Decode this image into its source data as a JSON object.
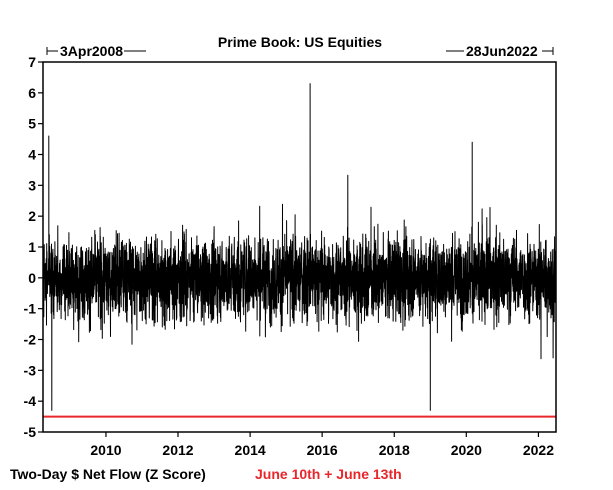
{
  "chart_data": {
    "type": "line",
    "title": "Prime Book: US Equities",
    "start_label": "3Apr2008",
    "end_label": "28Jun2022",
    "xlabel": "Two-Day $ Net Flow (Z Score)",
    "annotation": "June 10th + June 13th",
    "x_range": [
      "2008-04-03",
      "2022-06-28"
    ],
    "x_ticks": [
      "2010",
      "2012",
      "2014",
      "2016",
      "2018",
      "2020",
      "2022"
    ],
    "ylim": [
      -5,
      7
    ],
    "y_ticks": [
      -5,
      -4,
      -3,
      -2,
      -1,
      0,
      1,
      2,
      3,
      4,
      5,
      6,
      7
    ],
    "reference_line": {
      "y": -4.5,
      "color": "#e8262b"
    },
    "series_color": "#000000",
    "notable_points": [
      {
        "date": "2008-06-01",
        "value": 4.6
      },
      {
        "date": "2008-07-01",
        "value": -4.3
      },
      {
        "date": "2015-09-01",
        "value": 6.3
      },
      {
        "date": "2019-01-01",
        "value": -4.3
      },
      {
        "date": "2020-03-01",
        "value": 4.4
      },
      {
        "date": "2022-06-28",
        "value": -4.5
      }
    ]
  }
}
